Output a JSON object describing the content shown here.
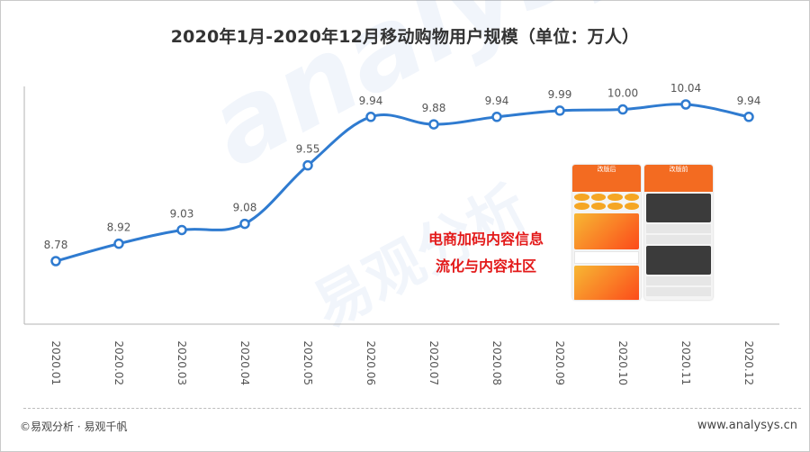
{
  "title": "2020年1月-2020年12月移动购物用户规模（单位：万人）",
  "watermark": {
    "logo_text": "analysys",
    "cn_text": "易观分析"
  },
  "annotation": {
    "line1": "电商加码内容信息",
    "line2": "流化与内容社区"
  },
  "phones": {
    "left_caption": "改版后",
    "right_caption": "改版前"
  },
  "footer": {
    "copyright": "©易观分析 · 易观千帆",
    "url": "www.analysys.cn"
  },
  "colors": {
    "line": "#2f7bd0",
    "marker_fill": "#ffffff",
    "annotation": "#e31a1a"
  },
  "chart_data": {
    "type": "line",
    "title": "2020年1月-2020年12月移动购物用户规模（单位：万人）",
    "categories": [
      "2020.01",
      "2020.02",
      "2020.03",
      "2020.04",
      "2020.05",
      "2020.06",
      "2020.07",
      "2020.08",
      "2020.09",
      "2020.10",
      "2020.11",
      "2020.12"
    ],
    "values": [
      8.78,
      8.92,
      9.03,
      9.08,
      9.55,
      9.94,
      9.88,
      9.94,
      9.99,
      10.0,
      10.04,
      9.94
    ],
    "labels": [
      "8.78",
      "8.92",
      "9.03",
      "9.08",
      "9.55",
      "9.94",
      "9.88",
      "9.94",
      "9.99",
      "10.00",
      "10.04",
      "9.94"
    ],
    "ylim": [
      8.4,
      10.2
    ],
    "grid": false,
    "legend": "none"
  }
}
